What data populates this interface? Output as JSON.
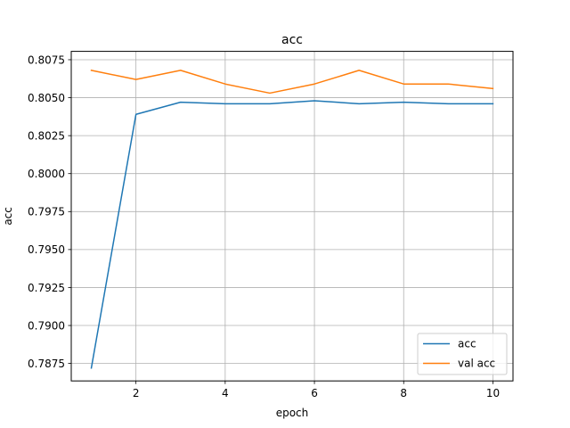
{
  "chart_data": {
    "type": "line",
    "title": "acc",
    "xlabel": "epoch",
    "ylabel": "acc",
    "x": [
      1,
      2,
      3,
      4,
      5,
      6,
      7,
      8,
      9,
      10
    ],
    "xlim": [
      0.55,
      10.45
    ],
    "ylim": [
      0.78635,
      0.80805
    ],
    "xticks": [
      2,
      4,
      6,
      8,
      10
    ],
    "xtick_labels": [
      "2",
      "4",
      "6",
      "8",
      "10"
    ],
    "yticks": [
      0.7875,
      0.79,
      0.7925,
      0.795,
      0.7975,
      0.8,
      0.8025,
      0.805,
      0.8075
    ],
    "ytick_labels": [
      "0.7875",
      "0.7900",
      "0.7925",
      "0.7950",
      "0.7975",
      "0.8000",
      "0.8025",
      "0.8050",
      "0.8075"
    ],
    "grid": true,
    "legend_position": "lower-right",
    "series": [
      {
        "name": "acc",
        "color": "#1f77b4",
        "values": [
          0.7872,
          0.8039,
          0.8047,
          0.8046,
          0.8046,
          0.8048,
          0.8046,
          0.8047,
          0.8046,
          0.8046
        ]
      },
      {
        "name": "val acc",
        "color": "#ff7f0e",
        "values": [
          0.8068,
          0.8062,
          0.8068,
          0.8059,
          0.8053,
          0.8059,
          0.8068,
          0.8059,
          0.8059,
          0.8056
        ]
      }
    ]
  }
}
